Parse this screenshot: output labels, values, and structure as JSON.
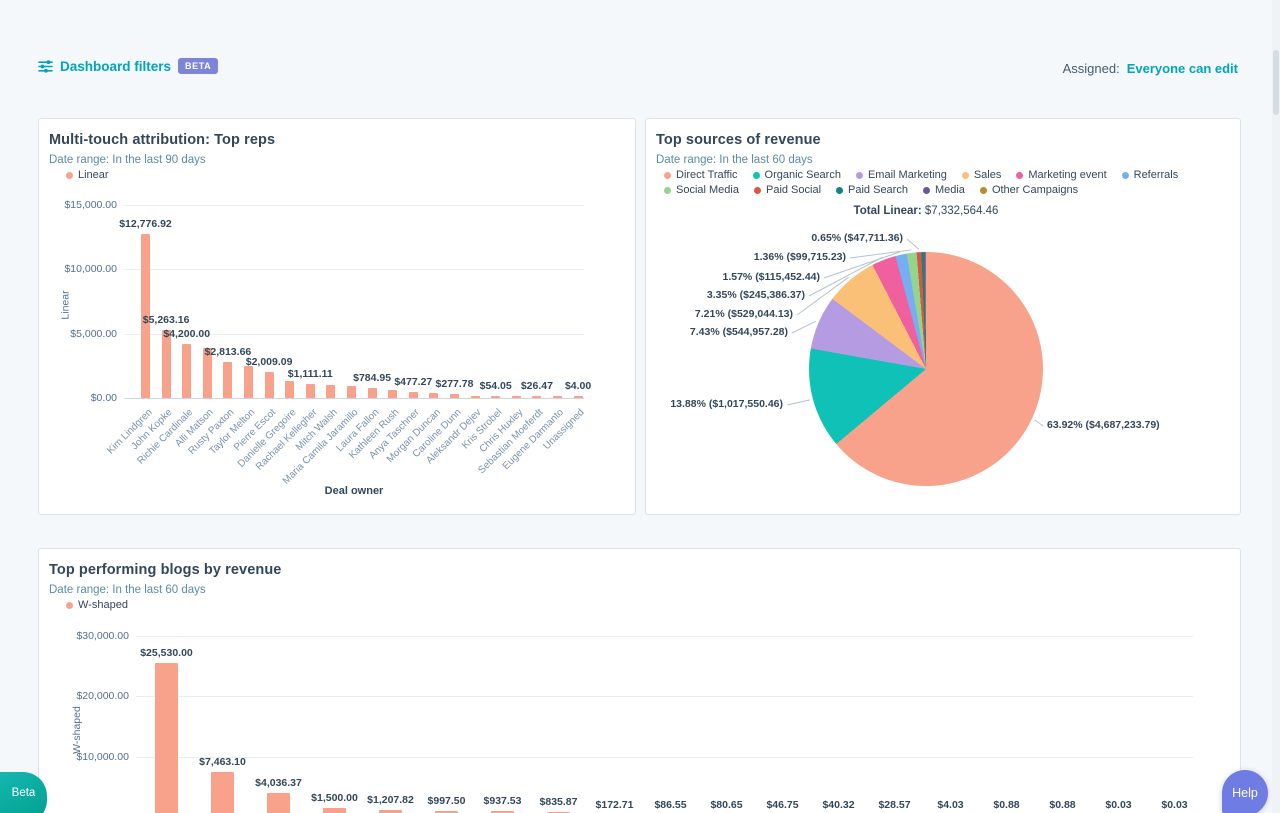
{
  "header": {
    "dashboard_filters_label": "Dashboard filters",
    "beta_badge": "BETA",
    "assigned_label": "Assigned:",
    "assigned_value": "Everyone can edit"
  },
  "floating": {
    "beta_button": "Beta",
    "help_button": "Help"
  },
  "colors": {
    "bar_salmon": "#f8a28c",
    "link_teal": "#00a4bd",
    "heading": "#33475b",
    "date_range_text": "#5a8ca5",
    "beta_badge_bg": "#7d85d8",
    "help_fab_bg": "#6f7ce3",
    "beta_fab_gradient": [
      "#15b7b2",
      "#009e8d"
    ],
    "page_bg": "#f5f8fa"
  },
  "chart_data": [
    {
      "id": "top_reps",
      "type": "bar",
      "title": "Multi-touch attribution: Top reps",
      "date_range": "Date range: In the last 90 days",
      "legend": [
        {
          "label": "Linear",
          "color": "#f8a28c"
        }
      ],
      "xlabel": "Deal owner",
      "ylabel": "Linear",
      "ylim": [
        0,
        15000
      ],
      "yticks": [
        {
          "label": "$15,000.00",
          "value": 15000
        },
        {
          "label": "$10,000.00",
          "value": 10000
        },
        {
          "label": "$5,000.00",
          "value": 5000
        },
        {
          "label": "$0.00",
          "value": 0
        }
      ],
      "bars": [
        {
          "name": "Kim Lindgren",
          "value": 12776.92,
          "label": "$12,776.92"
        },
        {
          "name": "John Kopke",
          "value": 5263.16,
          "label": "$5,263.16"
        },
        {
          "name": "Richie Cardinale",
          "value": 4200.0,
          "label": "$4,200.00"
        },
        {
          "name": "Alli Matson",
          "value": 3900,
          "label": null
        },
        {
          "name": "Rusty Paxton",
          "value": 2813.66,
          "label": "$2,813.66"
        },
        {
          "name": "Taylor Melton",
          "value": 2450,
          "label": null
        },
        {
          "name": "Pierre Escot",
          "value": 2009.09,
          "label": "$2,009.09"
        },
        {
          "name": "Danielle Gregoire",
          "value": 1350,
          "label": null
        },
        {
          "name": "Rachael Kellegher",
          "value": 1111.11,
          "label": "$1,111.11"
        },
        {
          "name": "Mitch Walsh",
          "value": 1000,
          "label": null
        },
        {
          "name": "Maria Camila Jaramillo",
          "value": 900,
          "label": null
        },
        {
          "name": "Laura Fallon",
          "value": 784.95,
          "label": "$784.95"
        },
        {
          "name": "Kathleen Rush",
          "value": 620,
          "label": null
        },
        {
          "name": "Anya Taschner",
          "value": 477.27,
          "label": "$477.27"
        },
        {
          "name": "Morgan Duncan",
          "value": 370,
          "label": null
        },
        {
          "name": "Caroline Dunn",
          "value": 277.78,
          "label": "$277.78"
        },
        {
          "name": "Aleksandr Dejev",
          "value": 150,
          "label": null
        },
        {
          "name": "Kris Strobel",
          "value": 54.05,
          "label": "$54.05"
        },
        {
          "name": "Chris Huxley",
          "value": 40,
          "label": null
        },
        {
          "name": "Sebastian Moeferdt",
          "value": 26.47,
          "label": "$26.47"
        },
        {
          "name": "Eugene Darmanto",
          "value": 15,
          "label": null
        },
        {
          "name": "Unassigned",
          "value": 4.0,
          "label": "$4.00"
        }
      ]
    },
    {
      "id": "revenue_sources",
      "type": "pie",
      "title": "Top sources of revenue",
      "date_range": "Date range: In the last 60 days",
      "total_label": "Total Linear:",
      "total_value": "$7,332,564.46",
      "slices": [
        {
          "name": "Direct Traffic",
          "percent": 63.92,
          "amount": "$4,687,233.79",
          "callout": "63.92% ($4,687,233.79)",
          "color": "#f8a28c"
        },
        {
          "name": "Organic Search",
          "percent": 13.88,
          "amount": "$1,017,550.46",
          "callout": "13.88% ($1,017,550.46)",
          "color": "#0fc1b7"
        },
        {
          "name": "Email Marketing",
          "percent": 7.43,
          "amount": "$544,957.28",
          "callout": "7.43% ($544,957.28)",
          "color": "#b49be2"
        },
        {
          "name": "Sales",
          "percent": 7.21,
          "amount": "$529,044.13",
          "callout": "7.21% ($529,044.13)",
          "color": "#fbc077"
        },
        {
          "name": "Marketing event",
          "percent": 3.35,
          "amount": "$245,386.37",
          "callout": "3.35% ($245,386.37)",
          "color": "#f0609e"
        },
        {
          "name": "Referrals",
          "percent": 1.57,
          "amount": "$115,452.44",
          "callout": "1.57% ($115,452.44)",
          "color": "#76aef4"
        },
        {
          "name": "Social Media",
          "percent": 1.36,
          "amount": "$99,715.23",
          "callout": "1.36% ($99,715.23)",
          "color": "#94d48b"
        },
        {
          "name": "Paid Social",
          "percent": 0.65,
          "amount": "$47,711.36",
          "callout": "0.65% ($47,711.36)",
          "color": "#d85642"
        },
        {
          "name": "Paid Search",
          "percent": 0.35,
          "amount": null,
          "callout": null,
          "color": "#0e8784"
        },
        {
          "name": "Media",
          "percent": 0.18,
          "amount": null,
          "callout": null,
          "color": "#6a55a4"
        },
        {
          "name": "Other Campaigns",
          "percent": 0.1,
          "amount": null,
          "callout": null,
          "color": "#bb8b2d"
        }
      ]
    },
    {
      "id": "top_blogs",
      "type": "bar",
      "title": "Top performing blogs by revenue",
      "date_range": "Date range: In the last 60 days",
      "legend": [
        {
          "label": "W-shaped",
          "color": "#f8a28c"
        }
      ],
      "xlabel": null,
      "ylabel": "W-shaped",
      "ylim": [
        0,
        30000
      ],
      "yticks": [
        {
          "label": "$30,000.00",
          "value": 30000
        },
        {
          "label": "$20,000.00",
          "value": 20000
        },
        {
          "label": "$10,000.00",
          "value": 10000
        }
      ],
      "bars": [
        {
          "name": null,
          "value": 25530.0,
          "label": "$25,530.00"
        },
        {
          "name": null,
          "value": 7463.1,
          "label": "$7,463.10"
        },
        {
          "name": null,
          "value": 4036.37,
          "label": "$4,036.37"
        },
        {
          "name": null,
          "value": 1500.0,
          "label": "$1,500.00"
        },
        {
          "name": null,
          "value": 1207.82,
          "label": "$1,207.82"
        },
        {
          "name": null,
          "value": 997.5,
          "label": "$997.50"
        },
        {
          "name": null,
          "value": 937.53,
          "label": "$937.53"
        },
        {
          "name": null,
          "value": 835.87,
          "label": "$835.87"
        },
        {
          "name": null,
          "value": 172.71,
          "label": "$172.71"
        },
        {
          "name": null,
          "value": 86.55,
          "label": "$86.55"
        },
        {
          "name": null,
          "value": 80.65,
          "label": "$80.65"
        },
        {
          "name": null,
          "value": 46.75,
          "label": "$46.75"
        },
        {
          "name": null,
          "value": 40.32,
          "label": "$40.32"
        },
        {
          "name": null,
          "value": 28.57,
          "label": "$28.57"
        },
        {
          "name": null,
          "value": 4.03,
          "label": "$4.03"
        },
        {
          "name": null,
          "value": 0.88,
          "label": "$0.88"
        },
        {
          "name": null,
          "value": 0.88,
          "label": "$0.88"
        },
        {
          "name": null,
          "value": 0.03,
          "label": "$0.03"
        },
        {
          "name": null,
          "value": 0.03,
          "label": "$0.03"
        }
      ]
    }
  ]
}
